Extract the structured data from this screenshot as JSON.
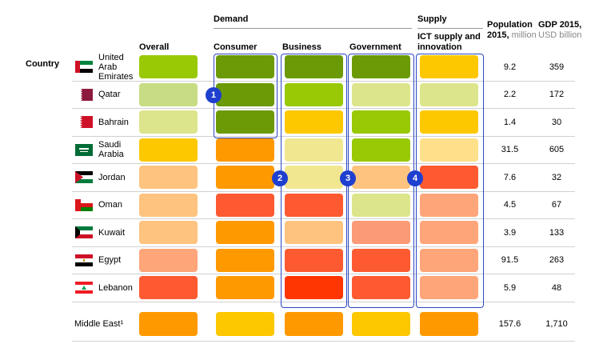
{
  "chart_data": {
    "type": "table",
    "row_header": "Country",
    "group_headers": {
      "demand": "Demand",
      "supply": "Supply"
    },
    "columns": {
      "overall": "Overall",
      "consumer": "Consumer",
      "business": "Business",
      "government": "Government",
      "supply": "ICT supply and innovation",
      "population_main": "Population 2015,",
      "population_unit": "million",
      "gdp_main": "GDP 2015,",
      "gdp_unit": "USD billion"
    },
    "colors": {
      "dark_green": "#6b9a06",
      "green": "#98c904",
      "light_green": "#c8dc84",
      "pale_green": "#dde58c",
      "pale_yellow": "#f1e790",
      "light_yellow": "#fde089",
      "yellow": "#fdc800",
      "light_orange": "#fec37e",
      "orange": "#ff9900",
      "peach": "#fea57a",
      "salmon": "#fb9a76",
      "red_orange": "#fd5a31",
      "red": "#ff3602",
      "highlight": "#2b47c4"
    },
    "rows": [
      {
        "country": "United Arab Emirates",
        "flag": "uae-flag",
        "cells": [
          "green",
          "dark_green",
          "dark_green",
          "dark_green",
          "yellow"
        ],
        "population": "9.2",
        "gdp": "359"
      },
      {
        "country": "Qatar",
        "flag": "qatar-flag",
        "cells": [
          "light_green",
          "dark_green",
          "green",
          "pale_green",
          "pale_green"
        ],
        "population": "2.2",
        "gdp": "172"
      },
      {
        "country": "Bahrain",
        "flag": "bahrain-flag",
        "cells": [
          "pale_green",
          "dark_green",
          "yellow",
          "green",
          "yellow"
        ],
        "population": "1.4",
        "gdp": "30"
      },
      {
        "country": "Saudi Arabia",
        "flag": "saudi-flag",
        "cells": [
          "yellow",
          "orange",
          "pale_yellow",
          "green",
          "light_yellow"
        ],
        "population": "31.5",
        "gdp": "605"
      },
      {
        "country": "Jordan",
        "flag": "jordan-flag",
        "cells": [
          "light_orange",
          "orange",
          "pale_yellow",
          "light_orange",
          "red_orange"
        ],
        "population": "7.6",
        "gdp": "32"
      },
      {
        "country": "Oman",
        "flag": "oman-flag",
        "cells": [
          "light_orange",
          "red_orange",
          "red_orange",
          "pale_green",
          "peach"
        ],
        "population": "4.5",
        "gdp": "67"
      },
      {
        "country": "Kuwait",
        "flag": "kuwait-flag",
        "cells": [
          "light_orange",
          "orange",
          "light_orange",
          "salmon",
          "peach"
        ],
        "population": "3.9",
        "gdp": "133"
      },
      {
        "country": "Egypt",
        "flag": "egypt-flag",
        "cells": [
          "peach",
          "orange",
          "red_orange",
          "red_orange",
          "peach"
        ],
        "population": "91.5",
        "gdp": "263"
      },
      {
        "country": "Lebanon",
        "flag": "lebanon-flag",
        "cells": [
          "red_orange",
          "orange",
          "red",
          "red_orange",
          "peach"
        ],
        "population": "5.9",
        "gdp": "48"
      }
    ],
    "summary_row": {
      "country": "Middle East¹",
      "cells": [
        "orange",
        "yellow",
        "orange",
        "yellow",
        "orange"
      ],
      "population": "157.6",
      "gdp": "1,710"
    },
    "callouts": [
      "1",
      "2",
      "3",
      "4"
    ]
  }
}
